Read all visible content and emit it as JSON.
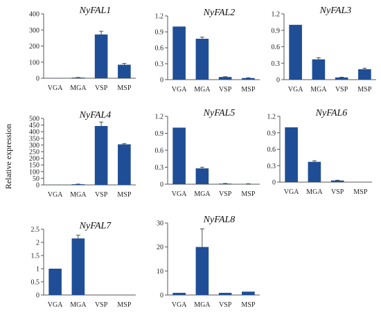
{
  "figure": {
    "ylabel": "Relative expression"
  },
  "colors": {
    "bar": "#1f4e96",
    "axis": "#555555",
    "error": "#222222"
  },
  "chart_data": [
    {
      "type": "bar",
      "title": "NyFAL1",
      "categories": [
        "VGA",
        "MGA",
        "VSP",
        "MSP"
      ],
      "values": [
        0.8,
        4,
        272,
        84
      ],
      "errors": [
        0,
        1,
        20,
        8
      ],
      "ylim": [
        0,
        400
      ],
      "yticks": [
        "0",
        "100",
        "200",
        "300",
        "400"
      ]
    },
    {
      "type": "bar",
      "title": "NyFAL2",
      "categories": [
        "VGA",
        "MGA",
        "VSP",
        "MSP"
      ],
      "values": [
        1.0,
        0.77,
        0.05,
        0.03
      ],
      "errors": [
        0,
        0.03,
        0.005,
        0.005
      ],
      "ylim": [
        0,
        1.2
      ],
      "yticks": [
        "0",
        "0.3",
        "0.6",
        "0.9",
        "1.2"
      ]
    },
    {
      "type": "bar",
      "title": "NyFAL3",
      "categories": [
        "VGA",
        "MGA",
        "VSP",
        "MSP"
      ],
      "values": [
        1.0,
        0.37,
        0.04,
        0.19
      ],
      "errors": [
        0,
        0.03,
        0.005,
        0.02
      ],
      "ylim": [
        0,
        1.2
      ],
      "yticks": [
        "0",
        "0.3",
        "0.6",
        "0.9",
        "1.2"
      ]
    },
    {
      "type": "bar",
      "title": "NyFAL4",
      "categories": [
        "VGA",
        "MGA",
        "VSP",
        "MSP"
      ],
      "values": [
        1,
        5,
        443,
        305
      ],
      "errors": [
        0,
        1,
        30,
        5
      ],
      "ylim": [
        0,
        500
      ],
      "yticks": [
        "0",
        "50",
        "100",
        "150",
        "200",
        "250",
        "300",
        "350",
        "400",
        "450",
        "500"
      ]
    },
    {
      "type": "bar",
      "title": "NyFAL5",
      "categories": [
        "VGA",
        "MGA",
        "VSP",
        "MSP"
      ],
      "values": [
        1.0,
        0.28,
        0.01,
        0.005
      ],
      "errors": [
        0,
        0.02,
        0.003,
        0.002
      ],
      "ylim": [
        0,
        1.2
      ],
      "yticks": [
        "0",
        "0.3",
        "0.6",
        "0.9",
        "1.2"
      ]
    },
    {
      "type": "bar",
      "title": "NyFAL6",
      "categories": [
        "VGA",
        "MGA",
        "VSP",
        "MSP"
      ],
      "values": [
        1.0,
        0.37,
        0.03,
        0.0
      ],
      "errors": [
        0,
        0.02,
        0.005,
        0
      ],
      "ylim": [
        0,
        1.2
      ],
      "yticks": [
        "0",
        "0.3",
        "0.6",
        "0.9",
        "1.2"
      ]
    },
    {
      "type": "bar",
      "title": "NyFAL7",
      "categories": [
        "VGA",
        "MGA",
        "VSP",
        "MSP"
      ],
      "values": [
        1.0,
        2.15,
        0.0,
        0.0
      ],
      "errors": [
        0,
        0.12,
        0,
        0
      ],
      "ylim": [
        0,
        2.5
      ],
      "yticks": [
        "0",
        "0.5",
        "1",
        "1.5",
        "2",
        "2.5"
      ]
    },
    {
      "type": "bar",
      "title": "NyFAL8",
      "categories": [
        "VGA",
        "MGA",
        "VSP",
        "MSP"
      ],
      "values": [
        0.9,
        20,
        0.9,
        1.4
      ],
      "errors": [
        0,
        7.5,
        0,
        0
      ],
      "ylim": [
        0,
        30
      ],
      "yticks": [
        "0",
        "10",
        "20",
        "30"
      ]
    }
  ]
}
